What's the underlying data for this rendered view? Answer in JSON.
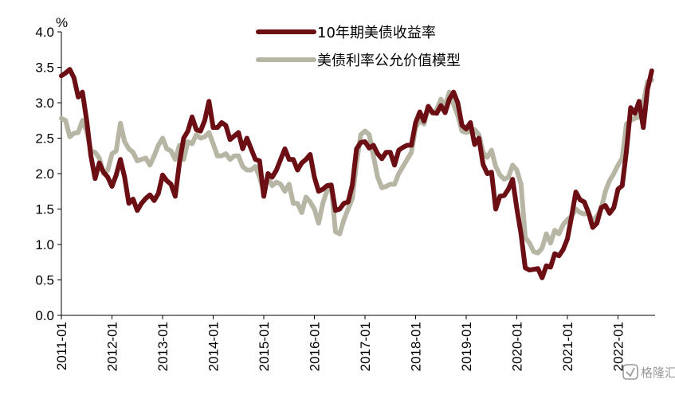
{
  "chart_data": {
    "type": "line",
    "ylabel": "%",
    "ylim": [
      0.0,
      4.0
    ],
    "y_ticks": [
      "0.0",
      "0.5",
      "1.0",
      "1.5",
      "2.0",
      "2.5",
      "3.0",
      "3.5",
      "4.0"
    ],
    "xlim": [
      "2011-01",
      "2022-09"
    ],
    "x_ticks": [
      "2011-01",
      "2012-01",
      "2013-01",
      "2014-01",
      "2015-01",
      "2016-01",
      "2017-01",
      "2018-01",
      "2019-01",
      "2020-01",
      "2021-01",
      "2022-01"
    ],
    "grid": false,
    "legend_position": "top-center",
    "series": [
      {
        "name": "10年期美债收益率",
        "color": "#6b0f14",
        "points": [
          [
            "2011-01",
            3.38
          ],
          [
            "2011-02",
            3.42
          ],
          [
            "2011-03",
            3.47
          ],
          [
            "2011-04",
            3.35
          ],
          [
            "2011-05",
            3.08
          ],
          [
            "2011-06",
            3.15
          ],
          [
            "2011-07",
            2.75
          ],
          [
            "2011-08",
            2.25
          ],
          [
            "2011-09",
            1.93
          ],
          [
            "2011-10",
            2.15
          ],
          [
            "2011-11",
            2.02
          ],
          [
            "2011-12",
            1.95
          ],
          [
            "2012-01",
            1.82
          ],
          [
            "2012-02",
            1.98
          ],
          [
            "2012-03",
            2.2
          ],
          [
            "2012-04",
            1.95
          ],
          [
            "2012-05",
            1.58
          ],
          [
            "2012-06",
            1.64
          ],
          [
            "2012-07",
            1.48
          ],
          [
            "2012-08",
            1.58
          ],
          [
            "2012-09",
            1.65
          ],
          [
            "2012-10",
            1.7
          ],
          [
            "2012-11",
            1.62
          ],
          [
            "2012-12",
            1.72
          ],
          [
            "2013-01",
            1.98
          ],
          [
            "2013-02",
            1.9
          ],
          [
            "2013-03",
            1.85
          ],
          [
            "2013-04",
            1.68
          ],
          [
            "2013-05",
            2.15
          ],
          [
            "2013-06",
            2.5
          ],
          [
            "2013-07",
            2.6
          ],
          [
            "2013-08",
            2.8
          ],
          [
            "2013-09",
            2.62
          ],
          [
            "2013-10",
            2.6
          ],
          [
            "2013-11",
            2.75
          ],
          [
            "2013-12",
            3.02
          ],
          [
            "2014-01",
            2.65
          ],
          [
            "2014-02",
            2.65
          ],
          [
            "2014-03",
            2.72
          ],
          [
            "2014-04",
            2.68
          ],
          [
            "2014-05",
            2.48
          ],
          [
            "2014-06",
            2.53
          ],
          [
            "2014-07",
            2.58
          ],
          [
            "2014-08",
            2.35
          ],
          [
            "2014-09",
            2.5
          ],
          [
            "2014-10",
            2.35
          ],
          [
            "2014-11",
            2.2
          ],
          [
            "2014-12",
            2.18
          ],
          [
            "2015-01",
            1.68
          ],
          [
            "2015-02",
            2.0
          ],
          [
            "2015-03",
            1.95
          ],
          [
            "2015-04",
            2.05
          ],
          [
            "2015-05",
            2.2
          ],
          [
            "2015-06",
            2.35
          ],
          [
            "2015-07",
            2.2
          ],
          [
            "2015-08",
            2.2
          ],
          [
            "2015-09",
            2.05
          ],
          [
            "2015-10",
            2.15
          ],
          [
            "2015-11",
            2.2
          ],
          [
            "2015-12",
            2.27
          ],
          [
            "2016-01",
            1.95
          ],
          [
            "2016-02",
            1.75
          ],
          [
            "2016-03",
            1.78
          ],
          [
            "2016-04",
            1.83
          ],
          [
            "2016-05",
            1.84
          ],
          [
            "2016-06",
            1.48
          ],
          [
            "2016-07",
            1.5
          ],
          [
            "2016-08",
            1.58
          ],
          [
            "2016-09",
            1.6
          ],
          [
            "2016-10",
            1.84
          ],
          [
            "2016-11",
            2.35
          ],
          [
            "2016-12",
            2.44
          ],
          [
            "2017-01",
            2.45
          ],
          [
            "2017-02",
            2.36
          ],
          [
            "2017-03",
            2.4
          ],
          [
            "2017-04",
            2.28
          ],
          [
            "2017-05",
            2.21
          ],
          [
            "2017-06",
            2.3
          ],
          [
            "2017-07",
            2.3
          ],
          [
            "2017-08",
            2.12
          ],
          [
            "2017-09",
            2.33
          ],
          [
            "2017-10",
            2.37
          ],
          [
            "2017-11",
            2.4
          ],
          [
            "2017-12",
            2.4
          ],
          [
            "2018-01",
            2.72
          ],
          [
            "2018-02",
            2.87
          ],
          [
            "2018-03",
            2.74
          ],
          [
            "2018-04",
            2.95
          ],
          [
            "2018-05",
            2.86
          ],
          [
            "2018-06",
            2.85
          ],
          [
            "2018-07",
            2.96
          ],
          [
            "2018-08",
            2.86
          ],
          [
            "2018-09",
            3.05
          ],
          [
            "2018-10",
            3.15
          ],
          [
            "2018-11",
            3.0
          ],
          [
            "2018-12",
            2.68
          ],
          [
            "2019-01",
            2.63
          ],
          [
            "2019-02",
            2.72
          ],
          [
            "2019-03",
            2.41
          ],
          [
            "2019-04",
            2.5
          ],
          [
            "2019-05",
            2.13
          ],
          [
            "2019-06",
            2.0
          ],
          [
            "2019-07",
            2.02
          ],
          [
            "2019-08",
            1.5
          ],
          [
            "2019-09",
            1.68
          ],
          [
            "2019-10",
            1.69
          ],
          [
            "2019-11",
            1.78
          ],
          [
            "2019-12",
            1.92
          ],
          [
            "2020-01",
            1.51
          ],
          [
            "2020-02",
            1.15
          ],
          [
            "2020-03",
            0.67
          ],
          [
            "2020-04",
            0.64
          ],
          [
            "2020-05",
            0.65
          ],
          [
            "2020-06",
            0.66
          ],
          [
            "2020-07",
            0.53
          ],
          [
            "2020-08",
            0.7
          ],
          [
            "2020-09",
            0.68
          ],
          [
            "2020-10",
            0.87
          ],
          [
            "2020-11",
            0.84
          ],
          [
            "2020-12",
            0.93
          ],
          [
            "2021-01",
            1.08
          ],
          [
            "2021-02",
            1.4
          ],
          [
            "2021-03",
            1.74
          ],
          [
            "2021-04",
            1.63
          ],
          [
            "2021-05",
            1.6
          ],
          [
            "2021-06",
            1.45
          ],
          [
            "2021-07",
            1.24
          ],
          [
            "2021-08",
            1.3
          ],
          [
            "2021-09",
            1.52
          ],
          [
            "2021-10",
            1.55
          ],
          [
            "2021-11",
            1.44
          ],
          [
            "2021-12",
            1.52
          ],
          [
            "2022-01",
            1.78
          ],
          [
            "2022-02",
            1.83
          ],
          [
            "2022-03",
            2.32
          ],
          [
            "2022-04",
            2.93
          ],
          [
            "2022-05",
            2.85
          ],
          [
            "2022-06",
            3.02
          ],
          [
            "2022-07",
            2.65
          ],
          [
            "2022-08",
            3.19
          ],
          [
            "2022-09",
            3.45
          ]
        ]
      },
      {
        "name": "美债利率公允价值模型",
        "color": "#b7b6a5",
        "points": [
          [
            "2011-01",
            2.78
          ],
          [
            "2011-02",
            2.75
          ],
          [
            "2011-03",
            2.52
          ],
          [
            "2011-04",
            2.57
          ],
          [
            "2011-05",
            2.58
          ],
          [
            "2011-06",
            2.75
          ],
          [
            "2011-07",
            2.6
          ],
          [
            "2011-08",
            2.32
          ],
          [
            "2011-09",
            2.3
          ],
          [
            "2011-10",
            2.22
          ],
          [
            "2011-11",
            2.0
          ],
          [
            "2011-12",
            2.05
          ],
          [
            "2012-01",
            2.28
          ],
          [
            "2012-02",
            2.32
          ],
          [
            "2012-03",
            2.71
          ],
          [
            "2012-04",
            2.45
          ],
          [
            "2012-05",
            2.35
          ],
          [
            "2012-06",
            2.3
          ],
          [
            "2012-07",
            2.18
          ],
          [
            "2012-08",
            2.2
          ],
          [
            "2012-09",
            2.22
          ],
          [
            "2012-10",
            2.12
          ],
          [
            "2012-11",
            2.25
          ],
          [
            "2012-12",
            2.4
          ],
          [
            "2013-01",
            2.5
          ],
          [
            "2013-02",
            2.35
          ],
          [
            "2013-03",
            2.32
          ],
          [
            "2013-04",
            2.2
          ],
          [
            "2013-05",
            2.4
          ],
          [
            "2013-06",
            2.2
          ],
          [
            "2013-07",
            2.45
          ],
          [
            "2013-08",
            2.42
          ],
          [
            "2013-09",
            2.55
          ],
          [
            "2013-10",
            2.5
          ],
          [
            "2013-11",
            2.52
          ],
          [
            "2013-12",
            2.58
          ],
          [
            "2014-01",
            2.42
          ],
          [
            "2014-02",
            2.25
          ],
          [
            "2014-03",
            2.25
          ],
          [
            "2014-04",
            2.28
          ],
          [
            "2014-05",
            2.2
          ],
          [
            "2014-06",
            2.25
          ],
          [
            "2014-07",
            2.25
          ],
          [
            "2014-08",
            2.1
          ],
          [
            "2014-09",
            2.05
          ],
          [
            "2014-10",
            2.05
          ],
          [
            "2014-11",
            2.1
          ],
          [
            "2014-12",
            1.95
          ],
          [
            "2015-01",
            1.74
          ],
          [
            "2015-02",
            1.95
          ],
          [
            "2015-03",
            1.83
          ],
          [
            "2015-04",
            1.88
          ],
          [
            "2015-05",
            1.85
          ],
          [
            "2015-06",
            1.75
          ],
          [
            "2015-07",
            1.85
          ],
          [
            "2015-08",
            1.58
          ],
          [
            "2015-09",
            1.58
          ],
          [
            "2015-10",
            1.45
          ],
          [
            "2015-11",
            1.67
          ],
          [
            "2015-12",
            1.6
          ],
          [
            "2016-01",
            1.5
          ],
          [
            "2016-02",
            1.3
          ],
          [
            "2016-03",
            1.58
          ],
          [
            "2016-04",
            1.76
          ],
          [
            "2016-05",
            1.82
          ],
          [
            "2016-06",
            1.18
          ],
          [
            "2016-07",
            1.15
          ],
          [
            "2016-08",
            1.35
          ],
          [
            "2016-09",
            1.5
          ],
          [
            "2016-10",
            1.65
          ],
          [
            "2016-11",
            2.15
          ],
          [
            "2016-12",
            2.55
          ],
          [
            "2017-01",
            2.6
          ],
          [
            "2017-02",
            2.55
          ],
          [
            "2017-03",
            2.25
          ],
          [
            "2017-04",
            1.95
          ],
          [
            "2017-05",
            1.8
          ],
          [
            "2017-06",
            1.82
          ],
          [
            "2017-07",
            1.85
          ],
          [
            "2017-08",
            1.85
          ],
          [
            "2017-09",
            2.0
          ],
          [
            "2017-10",
            2.1
          ],
          [
            "2017-11",
            2.2
          ],
          [
            "2017-12",
            2.3
          ],
          [
            "2018-01",
            2.65
          ],
          [
            "2018-02",
            2.75
          ],
          [
            "2018-03",
            2.7
          ],
          [
            "2018-04",
            2.93
          ],
          [
            "2018-05",
            2.85
          ],
          [
            "2018-06",
            2.9
          ],
          [
            "2018-07",
            3.05
          ],
          [
            "2018-08",
            2.95
          ],
          [
            "2018-09",
            3.15
          ],
          [
            "2018-10",
            2.98
          ],
          [
            "2018-11",
            2.82
          ],
          [
            "2018-12",
            2.6
          ],
          [
            "2019-01",
            2.58
          ],
          [
            "2019-02",
            2.6
          ],
          [
            "2019-03",
            2.62
          ],
          [
            "2019-04",
            2.55
          ],
          [
            "2019-05",
            2.3
          ],
          [
            "2019-06",
            2.23
          ],
          [
            "2019-07",
            2.33
          ],
          [
            "2019-08",
            2.1
          ],
          [
            "2019-09",
            1.98
          ],
          [
            "2019-10",
            1.92
          ],
          [
            "2019-11",
            1.95
          ],
          [
            "2019-12",
            2.12
          ],
          [
            "2020-01",
            2.05
          ],
          [
            "2020-02",
            1.85
          ],
          [
            "2020-03",
            1.1
          ],
          [
            "2020-04",
            1.02
          ],
          [
            "2020-05",
            0.9
          ],
          [
            "2020-06",
            0.88
          ],
          [
            "2020-07",
            0.95
          ],
          [
            "2020-08",
            1.15
          ],
          [
            "2020-09",
            1.02
          ],
          [
            "2020-10",
            1.2
          ],
          [
            "2020-11",
            1.15
          ],
          [
            "2020-12",
            1.28
          ],
          [
            "2021-01",
            1.35
          ],
          [
            "2021-02",
            1.4
          ],
          [
            "2021-03",
            1.5
          ],
          [
            "2021-04",
            1.45
          ],
          [
            "2021-05",
            1.43
          ],
          [
            "2021-06",
            1.45
          ],
          [
            "2021-07",
            1.32
          ],
          [
            "2021-08",
            1.4
          ],
          [
            "2021-09",
            1.5
          ],
          [
            "2021-10",
            1.75
          ],
          [
            "2021-11",
            1.9
          ],
          [
            "2021-12",
            2.0
          ],
          [
            "2022-01",
            2.12
          ],
          [
            "2022-02",
            2.22
          ],
          [
            "2022-03",
            2.7
          ],
          [
            "2022-04",
            2.75
          ],
          [
            "2022-05",
            2.78
          ],
          [
            "2022-06",
            2.8
          ],
          [
            "2022-07",
            3.0
          ],
          [
            "2022-08",
            3.3
          ],
          [
            "2022-09",
            3.32
          ]
        ]
      }
    ]
  },
  "watermark": {
    "text": "格隆汇",
    "icon": "watermark-logo-icon"
  }
}
